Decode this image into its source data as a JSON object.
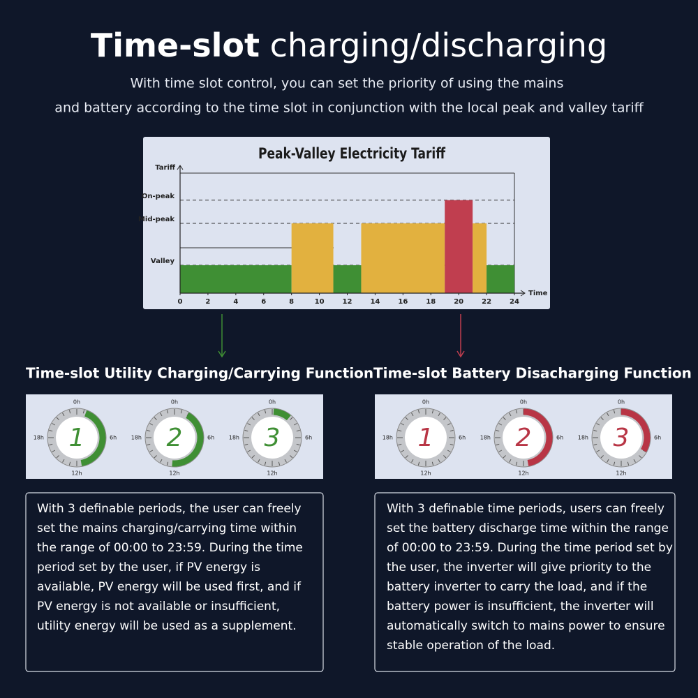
{
  "header": {
    "title_bold": "Time-slot",
    "title_rest": "charging/discharging",
    "subtitle": [
      "With time slot control, you can set the priority of using the mains",
      "and battery according to the time slot in conjunction with the local peak and valley tariff"
    ]
  },
  "chart_data": {
    "type": "histogram",
    "title": "Peak-Valley Electricity Tariff",
    "x_label": "Time",
    "y_label": "Tariff",
    "bins": [
      0,
      8,
      11,
      13,
      19,
      21,
      22,
      24
    ],
    "values": [
      1,
      2.5,
      1,
      2.5,
      3.33,
      2.5,
      1
    ],
    "colors": [
      "#3f8f34",
      "#e2b13f",
      "#3f8f34",
      "#e2b13f",
      "#c03e4f",
      "#e2b13f",
      "#3f8f34"
    ],
    "xlim": [
      0,
      24
    ],
    "xticks": [
      0,
      2,
      4,
      6,
      8,
      10,
      12,
      14,
      16,
      18,
      20,
      22,
      24
    ],
    "ylim": [
      0,
      4.3
    ],
    "yticks": [
      {
        "value": 1,
        "label": "Valley"
      },
      {
        "value": 2.5,
        "label": "Mid-peak"
      },
      {
        "value": 3.33,
        "label": "On-peak"
      }
    ]
  },
  "dial_labels": [
    "0h",
    "6h",
    "12h",
    "18h"
  ],
  "sections": [
    {
      "heading": "Time-slot Utility Charging/Carrying Function",
      "dials": [
        "1",
        "2",
        "3"
      ],
      "text": [
        "With 3 definable periods, the user can freely",
        "set the mains charging/carrying time within",
        "the range of 00:00 to 23:59. During the time",
        "period set by the user, if PV energy is",
        "available, PV energy will be used first, and if",
        "PV energy is not available or insufficient,",
        "utility energy will be used as a supplement."
      ]
    },
    {
      "heading": "Time-slot Battery Disacharging Function",
      "dials": [
        "1",
        "2",
        "3"
      ],
      "text": [
        "With 3 definable time periods, users can freely",
        "set the battery discharge time within the range",
        "of 00:00 to 23:59. During the time period set by",
        "the user, the inverter will give priority to the",
        "battery inverter to carry the load, and if the",
        "battery power is insufficient, the inverter will",
        "automatically switch to mains power to ensure",
        "stable operation of the load."
      ]
    }
  ]
}
